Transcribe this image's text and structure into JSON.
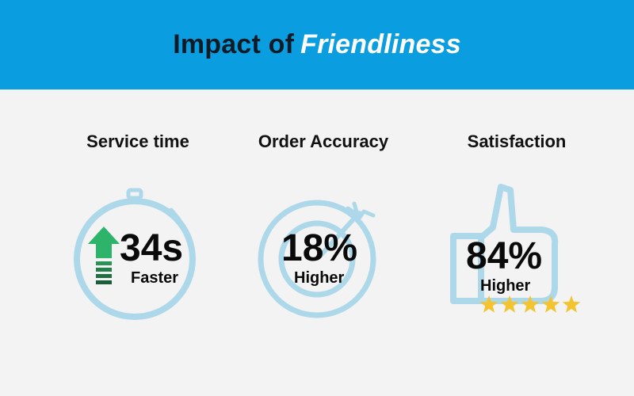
{
  "header": {
    "title_prefix": "Impact of",
    "title_emphasis": "Friendliness",
    "background_color": "#0a9de0"
  },
  "metrics": [
    {
      "heading": "Service time",
      "value": "34s",
      "caption": "Faster",
      "icon": "stopwatch-icon"
    },
    {
      "heading": "Order Accuracy",
      "value": "18%",
      "caption": "Higher",
      "icon": "target-icon"
    },
    {
      "heading": "Satisfaction",
      "value": "84%",
      "caption": "Higher",
      "icon": "thumbs-up-icon"
    }
  ],
  "rating": {
    "stars": 5,
    "max": 5,
    "color": "#f4c430"
  },
  "colors": {
    "icon_outline": "#add8ea",
    "arrow_green": "#2db36a",
    "arrow_dark": "#1f6e44"
  }
}
